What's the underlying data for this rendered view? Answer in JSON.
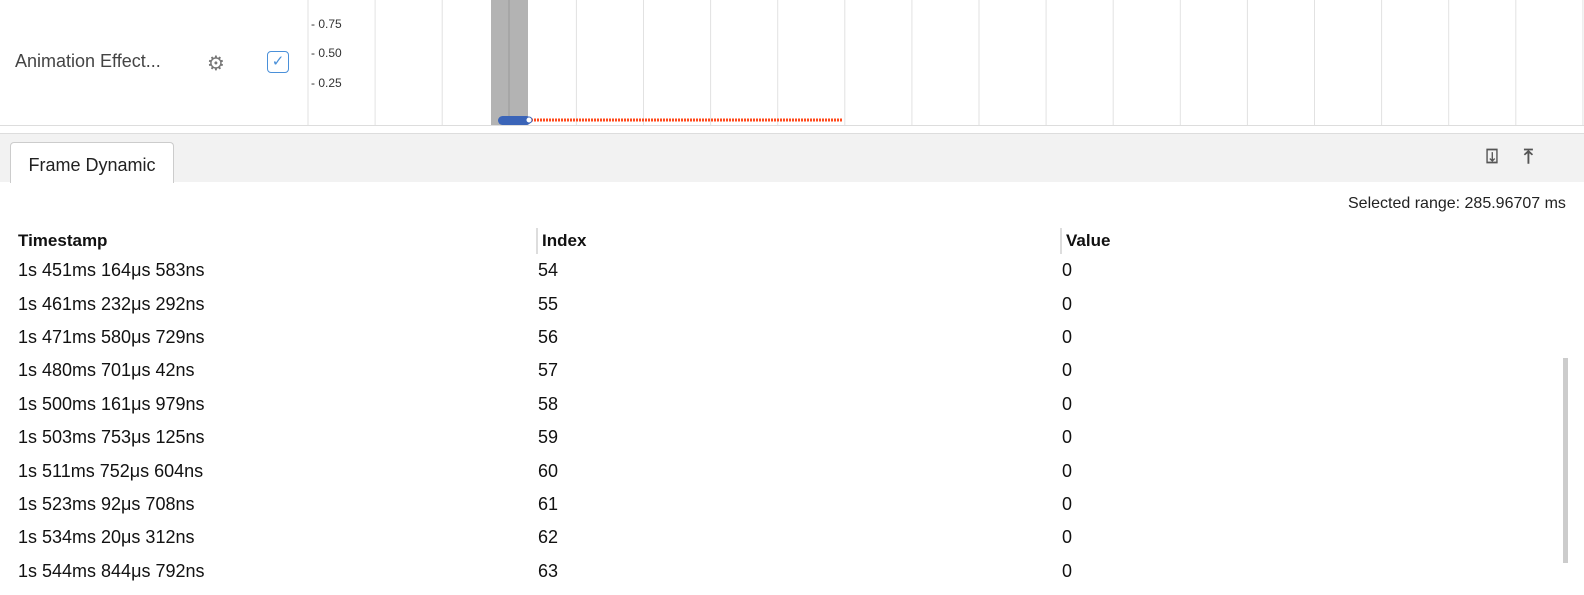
{
  "track": {
    "name": "Animation Effect...",
    "ticks": [
      "- 0.75",
      "- 0.50",
      "- 0.25"
    ],
    "checked": true,
    "colors": {
      "selection": "#b3b3b3",
      "marker": "#3a64b8",
      "line": "#ff4a1c"
    }
  },
  "panel": {
    "tab": "Frame Dynamic",
    "icons": [
      "download-icon",
      "move-to-top-icon"
    ],
    "selected_range": "Selected range: 285.96707 ms",
    "columns": [
      "Timestamp",
      "Index",
      "Value"
    ],
    "rows": [
      [
        "1s 451ms 164μs 583ns",
        "54",
        "0"
      ],
      [
        "1s 461ms 232μs 292ns",
        "55",
        "0"
      ],
      [
        "1s 471ms 580μs 729ns",
        "56",
        "0"
      ],
      [
        "1s 480ms 701μs 42ns",
        "57",
        "0"
      ],
      [
        "1s 500ms 161μs 979ns",
        "58",
        "0"
      ],
      [
        "1s 503ms 753μs 125ns",
        "59",
        "0"
      ],
      [
        "1s 511ms 752μs 604ns",
        "60",
        "0"
      ],
      [
        "1s 523ms 92μs 708ns",
        "61",
        "0"
      ],
      [
        "1s 534ms 20μs 312ns",
        "62",
        "0"
      ],
      [
        "1s 544ms 844μs 792ns",
        "63",
        "0"
      ]
    ]
  }
}
